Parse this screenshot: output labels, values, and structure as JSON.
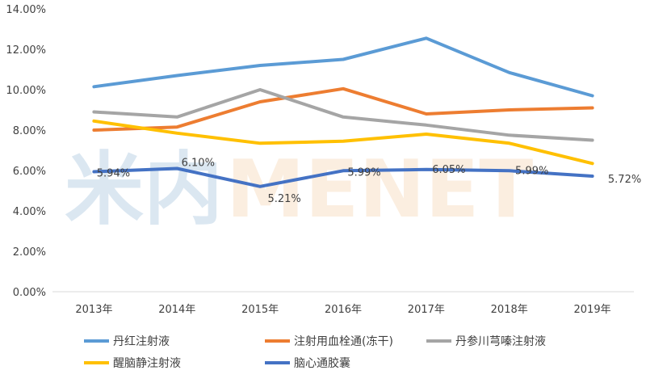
{
  "chart_data": {
    "type": "line",
    "categories": [
      "2013年",
      "2014年",
      "2015年",
      "2016年",
      "2017年",
      "2018年",
      "2019年"
    ],
    "ylim": [
      0,
      14
    ],
    "yticks": [
      "0.00%",
      "2.00%",
      "4.00%",
      "6.00%",
      "8.00%",
      "10.00%",
      "12.00%",
      "14.00%"
    ],
    "grid": false,
    "legend_position": "bottom",
    "series": [
      {
        "name": "丹红注射液",
        "color": "#5b9bd5",
        "values": [
          10.15,
          10.7,
          11.2,
          11.5,
          12.55,
          10.85,
          9.7
        ]
      },
      {
        "name": "注射用血栓通(冻干)",
        "color": "#ed7d31",
        "values": [
          8.0,
          8.15,
          9.4,
          10.05,
          8.8,
          9.0,
          9.1
        ]
      },
      {
        "name": "丹参川芎嗪注射液",
        "color": "#a5a5a5",
        "values": [
          8.9,
          8.65,
          10.0,
          8.65,
          8.25,
          7.75,
          7.5
        ]
      },
      {
        "name": "醒脑静注射液",
        "color": "#ffc000",
        "values": [
          8.45,
          7.85,
          7.35,
          7.45,
          7.8,
          7.35,
          6.35
        ]
      },
      {
        "name": "脑心通胶囊",
        "color": "#4472c4",
        "values": [
          5.94,
          6.1,
          5.21,
          5.99,
          6.05,
          5.99,
          5.72
        ]
      }
    ],
    "data_labels": {
      "series": "脑心通胶囊",
      "labels": [
        "5.94%",
        "6.10%",
        "5.21%",
        "5.99%",
        "6.05%",
        "5.99%",
        "5.72%"
      ]
    }
  },
  "watermark": {
    "text_cn": "米内",
    "text_en": "MENET"
  }
}
